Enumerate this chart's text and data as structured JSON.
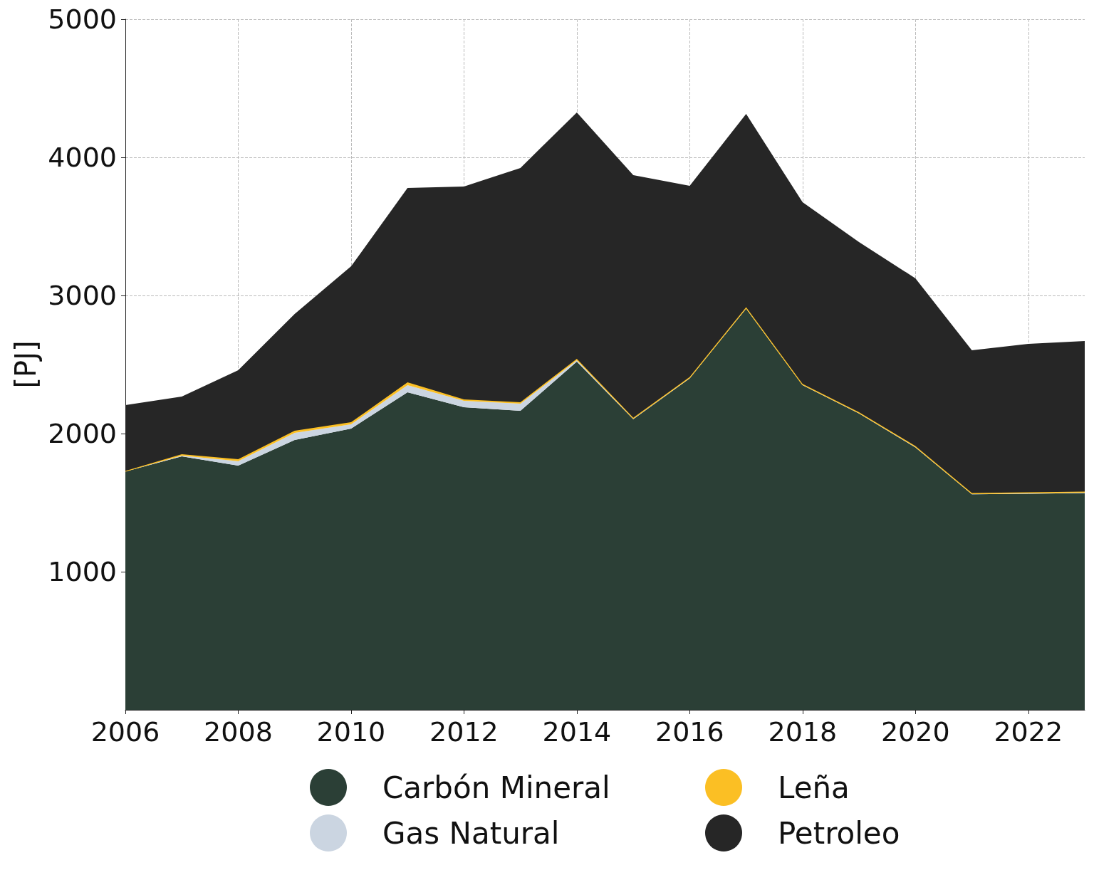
{
  "chart_data": {
    "type": "area",
    "stacked": true,
    "ylabel": "[PJ]",
    "x": [
      2006,
      2007,
      2008,
      2009,
      2010,
      2011,
      2012,
      2013,
      2014,
      2015,
      2016,
      2017,
      2018,
      2019,
      2020,
      2021,
      2022,
      2023
    ],
    "series": [
      {
        "name": "Carbón Mineral",
        "color": "#2b3f36",
        "values": [
          1725,
          1835,
          1768,
          1954,
          2036,
          2299,
          2191,
          2165,
          2521,
          2105,
          2400,
          2905,
          2350,
          2145,
          1900,
          1560,
          1565,
          1570
        ]
      },
      {
        "name": "Gas Natural",
        "color": "#cbd5e1",
        "values": [
          0,
          5,
          32,
          51,
          31,
          52,
          46,
          51,
          10,
          2,
          2,
          2,
          2,
          2,
          2,
          2,
          2,
          2
        ]
      },
      {
        "name": "Leña",
        "color": "#fbbf24",
        "values": [
          5,
          10,
          14,
          16,
          15,
          20,
          10,
          11,
          10,
          8,
          8,
          8,
          8,
          8,
          8,
          8,
          8,
          8
        ]
      },
      {
        "name": "Petroleo",
        "color": "#262626",
        "values": [
          476,
          418,
          645,
          845,
          1129,
          1407,
          1542,
          1696,
          1784,
          1756,
          1384,
          1399,
          1315,
          1232,
          1214,
          1033,
          1074,
          1090
        ]
      }
    ],
    "xlim": [
      2006,
      2023
    ],
    "xticks": [
      2006,
      2008,
      2010,
      2012,
      2014,
      2016,
      2018,
      2020,
      2022
    ],
    "ylim": [
      0,
      5000
    ],
    "yticks": [
      1000,
      2000,
      3000,
      4000,
      5000
    ],
    "grid": true,
    "legend": "bottom",
    "marker": "none",
    "line_style": "solid"
  }
}
